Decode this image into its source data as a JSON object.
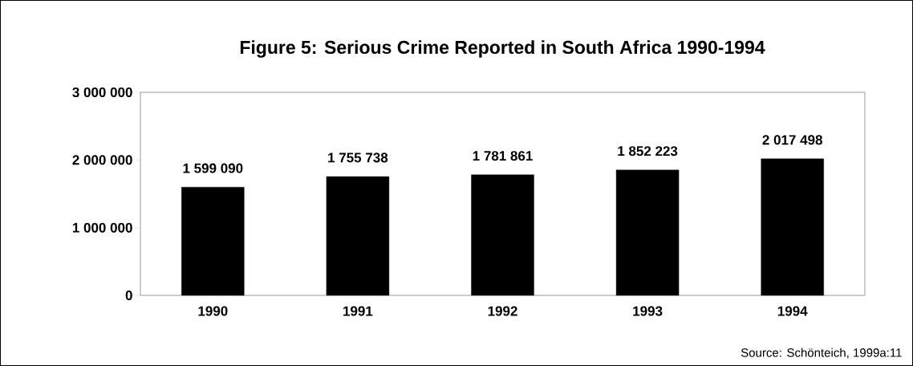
{
  "chart_data": {
    "type": "bar",
    "title": "Figure 5: Serious Crime Reported in South Africa 1990-1994",
    "categories": [
      "1990",
      "1991",
      "1992",
      "1993",
      "1994"
    ],
    "values": [
      1599090,
      1755738,
      1781861,
      1852223,
      2017498
    ],
    "value_labels": [
      "1 599 090",
      "1 755 738",
      "1 781 861",
      "1 852 223",
      "2 017 498"
    ],
    "color": "#000000",
    "ylim": [
      0,
      3000000
    ],
    "yticks": [
      {
        "value": 0,
        "label": "0"
      },
      {
        "value": 1000000,
        "label": "1 000 000"
      },
      {
        "value": 2000000,
        "label": "2 000 000"
      },
      {
        "value": 3000000,
        "label": "3 000 000"
      }
    ],
    "annotations": [
      "Source: Schönteich, 1999a:11"
    ]
  }
}
